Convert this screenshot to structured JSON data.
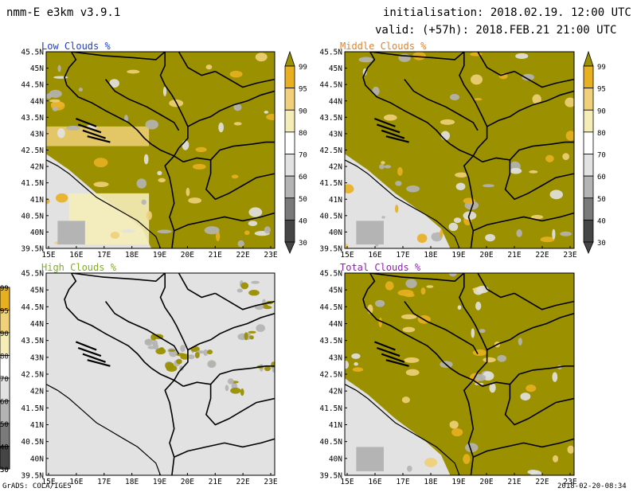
{
  "header": {
    "model": "nmm-E e3km v3.9.1",
    "init": "initialisation: 2018.02.19. 12:00 UTC",
    "valid": "valid: (+57h): 2018.FEB.21 21:00 UTC"
  },
  "footer": {
    "credit": "GrADS: COLA/IGES",
    "timestamp": "2018-02-20-08:34"
  },
  "colors": {
    "olive": "#9a9000",
    "gold": "#e8b020",
    "light_gold": "#f0d078",
    "pale": "#f5edb8",
    "light_gray": "#e2e2e2",
    "mid_gray": "#b4b4b4",
    "dark_gray": "#7a7a7a",
    "darkest_gray": "#454545"
  },
  "axes": {
    "lat_labels": [
      "45.5N",
      "45N",
      "44.5N",
      "44N",
      "43.5N",
      "43N",
      "42.5N",
      "42N",
      "41.5N",
      "41N",
      "40.5N",
      "40N",
      "39.5N"
    ],
    "lon_labels": [
      "15E",
      "16E",
      "17E",
      "18E",
      "19E",
      "20E",
      "21E",
      "22E",
      "23E"
    ]
  },
  "colorbar": {
    "labels": [
      "99",
      "95",
      "90",
      "80",
      "70",
      "60",
      "50",
      "40",
      "30"
    ]
  },
  "panels": [
    {
      "title": "Low Clouds %",
      "title_color": "#2040c0",
      "coverage": "mostly-cloudy"
    },
    {
      "title": "Middle Clouds %",
      "title_color": "#e88020",
      "coverage": "mostly-cloudy"
    },
    {
      "title": "High Clouds %",
      "title_color": "#80b020",
      "coverage": "mostly-clear"
    },
    {
      "title": "Total Clouds %",
      "title_color": "#9020b0",
      "coverage": "mostly-cloudy"
    }
  ]
}
